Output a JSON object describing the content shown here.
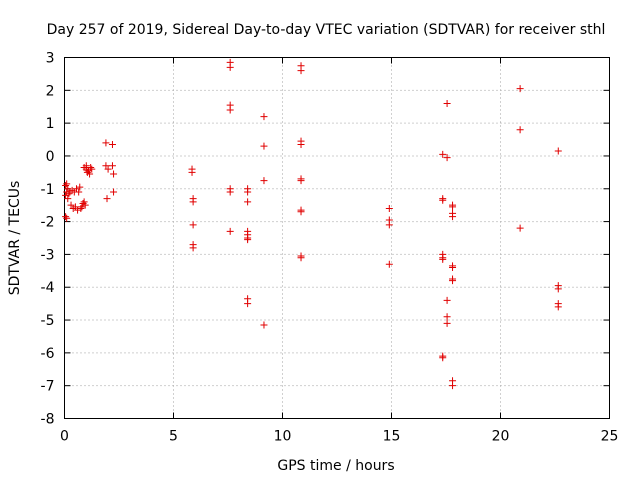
{
  "chart_data": {
    "type": "scatter",
    "title": "Day 257 of 2019, Sidereal Day-to-day VTEC variation (SDTVAR) for receiver sthl",
    "xlabel": "GPS time / hours",
    "ylabel": "SDTVAR / TECUs",
    "xlim": [
      0,
      25
    ],
    "ylim": [
      -8,
      3
    ],
    "xticks": [
      0,
      5,
      10,
      15,
      20,
      25
    ],
    "yticks": [
      -8,
      -7,
      -6,
      -5,
      -4,
      -3,
      -2,
      -1,
      0,
      1,
      2,
      3
    ],
    "grid": true,
    "marker": "+",
    "color": "#e00000",
    "series": [
      {
        "name": "SDTVAR",
        "points": [
          [
            0.05,
            -0.9
          ],
          [
            0.05,
            -1.2
          ],
          [
            0.05,
            -1.85
          ],
          [
            0.1,
            -0.85
          ],
          [
            0.1,
            -1.1
          ],
          [
            0.1,
            -1.9
          ],
          [
            0.15,
            -1.0
          ],
          [
            0.15,
            -1.3
          ],
          [
            0.2,
            -1.15
          ],
          [
            0.25,
            -1.1
          ],
          [
            0.3,
            -1.5
          ],
          [
            0.35,
            -1.05
          ],
          [
            0.4,
            -1.6
          ],
          [
            0.45,
            -1.1
          ],
          [
            0.5,
            -1.55
          ],
          [
            0.55,
            -1.0
          ],
          [
            0.6,
            -1.65
          ],
          [
            0.65,
            -1.1
          ],
          [
            0.7,
            -0.95
          ],
          [
            0.75,
            -1.6
          ],
          [
            0.8,
            -1.55
          ],
          [
            0.85,
            -1.45
          ],
          [
            0.9,
            -0.35
          ],
          [
            0.9,
            -1.4
          ],
          [
            0.95,
            -1.5
          ],
          [
            1.0,
            -0.4
          ],
          [
            1.0,
            -0.3
          ],
          [
            1.05,
            -0.5
          ],
          [
            1.1,
            -0.45
          ],
          [
            1.15,
            -0.55
          ],
          [
            1.2,
            -0.35
          ],
          [
            1.25,
            -0.4
          ],
          [
            1.9,
            0.4
          ],
          [
            1.9,
            -0.3
          ],
          [
            1.95,
            -1.3
          ],
          [
            2.0,
            -0.4
          ],
          [
            2.2,
            0.35
          ],
          [
            2.2,
            -0.3
          ],
          [
            2.25,
            -0.55
          ],
          [
            2.25,
            -1.1
          ],
          [
            5.85,
            -0.4
          ],
          [
            5.85,
            -0.5
          ],
          [
            5.9,
            -1.3
          ],
          [
            5.9,
            -1.4
          ],
          [
            5.9,
            -2.1
          ],
          [
            5.9,
            -2.7
          ],
          [
            5.9,
            -2.8
          ],
          [
            7.6,
            2.85
          ],
          [
            7.6,
            2.7
          ],
          [
            7.6,
            1.55
          ],
          [
            7.6,
            1.4
          ],
          [
            7.6,
            -1.0
          ],
          [
            7.6,
            -1.1
          ],
          [
            7.6,
            -2.3
          ],
          [
            8.4,
            -1.0
          ],
          [
            8.4,
            -1.1
          ],
          [
            8.4,
            -1.4
          ],
          [
            8.4,
            -2.3
          ],
          [
            8.4,
            -2.4
          ],
          [
            8.4,
            -2.5
          ],
          [
            8.4,
            -2.55
          ],
          [
            8.4,
            -4.35
          ],
          [
            8.4,
            -4.5
          ],
          [
            9.15,
            1.2
          ],
          [
            9.15,
            0.3
          ],
          [
            9.15,
            -0.75
          ],
          [
            9.15,
            -5.15
          ],
          [
            10.85,
            2.75
          ],
          [
            10.85,
            2.6
          ],
          [
            10.85,
            0.45
          ],
          [
            10.85,
            0.35
          ],
          [
            10.85,
            -0.7
          ],
          [
            10.85,
            -0.75
          ],
          [
            10.85,
            -1.65
          ],
          [
            10.85,
            -1.7
          ],
          [
            10.85,
            -3.05
          ],
          [
            10.85,
            -3.1
          ],
          [
            14.9,
            -1.6
          ],
          [
            14.9,
            -1.95
          ],
          [
            14.9,
            -2.1
          ],
          [
            14.9,
            -3.3
          ],
          [
            17.35,
            0.05
          ],
          [
            17.35,
            -1.3
          ],
          [
            17.35,
            -1.35
          ],
          [
            17.35,
            -3.0
          ],
          [
            17.35,
            -3.1
          ],
          [
            17.35,
            -3.15
          ],
          [
            17.35,
            -6.1
          ],
          [
            17.35,
            -6.15
          ],
          [
            17.55,
            1.6
          ],
          [
            17.55,
            -0.05
          ],
          [
            17.55,
            -4.4
          ],
          [
            17.55,
            -4.9
          ],
          [
            17.55,
            -5.1
          ],
          [
            17.8,
            -1.5
          ],
          [
            17.8,
            -1.55
          ],
          [
            17.8,
            -1.75
          ],
          [
            17.8,
            -1.85
          ],
          [
            17.8,
            -3.35
          ],
          [
            17.8,
            -3.4
          ],
          [
            17.8,
            -3.75
          ],
          [
            17.8,
            -3.8
          ],
          [
            17.8,
            -6.85
          ],
          [
            17.8,
            -7.0
          ],
          [
            20.9,
            2.05
          ],
          [
            20.9,
            0.8
          ],
          [
            20.9,
            -2.2
          ],
          [
            22.65,
            0.15
          ],
          [
            22.65,
            -3.95
          ],
          [
            22.65,
            -4.05
          ],
          [
            22.65,
            -4.5
          ],
          [
            22.65,
            -4.6
          ]
        ]
      }
    ]
  }
}
